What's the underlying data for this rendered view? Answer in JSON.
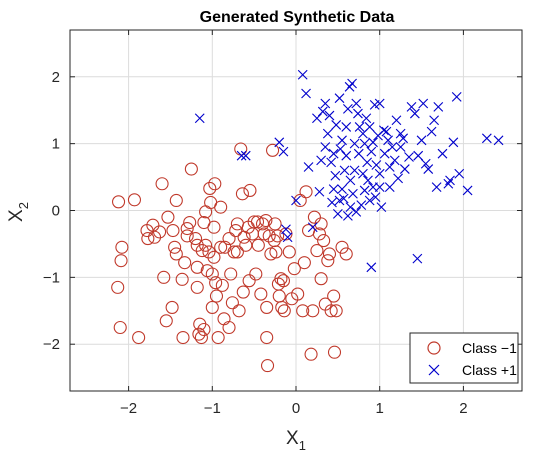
{
  "chart_data": {
    "type": "scatter",
    "title": "Generated Synthetic Data",
    "xlabel": {
      "main": "X",
      "sub": "1"
    },
    "ylabel": {
      "main": "X",
      "sub": "2"
    },
    "xlim": [
      -2.7,
      2.7
    ],
    "ylim": [
      -2.7,
      2.7
    ],
    "xticks": [
      -2,
      -1,
      0,
      1,
      2
    ],
    "yticks": [
      -2,
      -1,
      0,
      1,
      2
    ],
    "xtick_labels": [
      "−2",
      "−1",
      "0",
      "1",
      "2"
    ],
    "ytick_labels": [
      "−2",
      "−1",
      "0",
      "1",
      "2"
    ],
    "grid": true,
    "legend_position": "bottom-right",
    "series": [
      {
        "name": "Class −1",
        "marker": "circle",
        "color": "#c0392b",
        "points": [
          [
            -2.12,
            0.13
          ],
          [
            -1.93,
            0.16
          ],
          [
            -2.08,
            -0.55
          ],
          [
            -2.09,
            -0.75
          ],
          [
            -2.13,
            -1.15
          ],
          [
            -2.1,
            -1.75
          ],
          [
            -1.88,
            -1.9
          ],
          [
            -1.78,
            -0.3
          ],
          [
            -1.77,
            -0.42
          ],
          [
            -1.71,
            -0.22
          ],
          [
            -1.69,
            -0.4
          ],
          [
            -1.63,
            -0.32
          ],
          [
            -1.58,
            -1.0
          ],
          [
            -1.6,
            0.4
          ],
          [
            -1.53,
            -0.1
          ],
          [
            -1.55,
            -1.65
          ],
          [
            -1.48,
            -1.45
          ],
          [
            -1.47,
            -0.3
          ],
          [
            -1.45,
            -0.55
          ],
          [
            -1.43,
            -0.65
          ],
          [
            -1.43,
            0.15
          ],
          [
            -1.36,
            -1.03
          ],
          [
            -1.33,
            -0.78
          ],
          [
            -1.3,
            -0.27
          ],
          [
            -1.3,
            -0.38
          ],
          [
            -1.27,
            -0.18
          ],
          [
            -1.25,
            0.62
          ],
          [
            -1.2,
            -0.42
          ],
          [
            -1.18,
            -0.52
          ],
          [
            -1.18,
            -0.85
          ],
          [
            -1.18,
            -1.15
          ],
          [
            -1.15,
            -1.7
          ],
          [
            -1.16,
            -1.85
          ],
          [
            -1.13,
            -1.9
          ],
          [
            -1.1,
            -1.78
          ],
          [
            -1.12,
            -0.6
          ],
          [
            -1.1,
            -0.18
          ],
          [
            -1.08,
            -0.52
          ],
          [
            -1.06,
            -0.9
          ],
          [
            -1.04,
            -0.62
          ],
          [
            -1.03,
            0.33
          ],
          [
            -1.02,
            0.12
          ],
          [
            -1.0,
            -0.95
          ],
          [
            -1.0,
            -1.45
          ],
          [
            -0.98,
            -0.25
          ],
          [
            -0.98,
            -0.7
          ],
          [
            -0.97,
            0.4
          ],
          [
            -0.96,
            -1.08
          ],
          [
            -0.95,
            -1.28
          ],
          [
            -0.93,
            -1.9
          ],
          [
            -0.9,
            -0.55
          ],
          [
            -0.88,
            -1.12
          ],
          [
            -0.86,
            -1.62
          ],
          [
            -0.85,
            -0.55
          ],
          [
            -0.8,
            -0.42
          ],
          [
            -0.8,
            -1.75
          ],
          [
            -0.78,
            -0.95
          ],
          [
            -0.76,
            -1.38
          ],
          [
            -0.74,
            -0.62
          ],
          [
            -0.72,
            -0.3
          ],
          [
            -0.7,
            -0.2
          ],
          [
            -0.7,
            -0.62
          ],
          [
            -0.68,
            -1.5
          ],
          [
            -0.66,
            0.92
          ],
          [
            -0.64,
            0.25
          ],
          [
            -0.63,
            -1.22
          ],
          [
            -0.6,
            -0.52
          ],
          [
            -0.57,
            -0.25
          ],
          [
            -0.56,
            -1.05
          ],
          [
            -0.55,
            0.3
          ],
          [
            -0.52,
            -0.35
          ],
          [
            -0.5,
            -0.17
          ],
          [
            -0.48,
            -0.95
          ],
          [
            -0.46,
            -0.17
          ],
          [
            -0.45,
            -0.52
          ],
          [
            -0.42,
            -1.25
          ],
          [
            -0.4,
            -0.2
          ],
          [
            -0.38,
            -0.35
          ],
          [
            -0.36,
            -0.15
          ],
          [
            -0.35,
            -1.45
          ],
          [
            -0.35,
            -1.9
          ],
          [
            -0.34,
            -2.32
          ],
          [
            -0.32,
            -0.38
          ],
          [
            -0.3,
            -0.65
          ],
          [
            -0.28,
            0.9
          ],
          [
            -0.26,
            -0.45
          ],
          [
            -0.25,
            -0.2
          ],
          [
            -0.24,
            -0.62
          ],
          [
            -0.22,
            -0.38
          ],
          [
            -0.21,
            -1.1
          ],
          [
            -0.2,
            -1.28
          ],
          [
            -0.18,
            -1.02
          ],
          [
            -0.17,
            -1.45
          ],
          [
            -0.15,
            -1.05
          ],
          [
            -0.14,
            -1.5
          ],
          [
            -0.12,
            -0.35
          ],
          [
            -0.08,
            -0.62
          ],
          [
            -0.05,
            -1.32
          ],
          [
            -0.02,
            -0.87
          ],
          [
            0.02,
            -1.25
          ],
          [
            0.05,
            0.15
          ],
          [
            0.08,
            -1.5
          ],
          [
            0.1,
            -0.78
          ],
          [
            0.15,
            -0.3
          ],
          [
            0.18,
            -2.15
          ],
          [
            0.2,
            -1.5
          ],
          [
            0.22,
            -0.1
          ],
          [
            0.25,
            -0.6
          ],
          [
            0.28,
            -0.35
          ],
          [
            0.3,
            -0.2
          ],
          [
            0.3,
            -1.02
          ],
          [
            0.33,
            -0.45
          ],
          [
            0.35,
            -1.4
          ],
          [
            0.38,
            -0.75
          ],
          [
            0.4,
            -0.65
          ],
          [
            0.42,
            -1.5
          ],
          [
            0.45,
            -1.28
          ],
          [
            0.46,
            -2.12
          ],
          [
            0.48,
            -1.5
          ],
          [
            0.55,
            -0.55
          ],
          [
            0.6,
            -0.65
          ],
          [
            0.12,
            0.28
          ],
          [
            -0.9,
            0.05
          ],
          [
            -1.08,
            -0.02
          ],
          [
            -0.62,
            -0.4
          ],
          [
            -1.35,
            -1.9
          ]
        ]
      },
      {
        "name": "Class +1",
        "marker": "x",
        "color": "#0000cc",
        "points": [
          [
            -1.15,
            1.38
          ],
          [
            -0.65,
            0.82
          ],
          [
            -0.6,
            0.82
          ],
          [
            -0.2,
            1.02
          ],
          [
            -0.15,
            0.88
          ],
          [
            -0.12,
            -0.28
          ],
          [
            -0.1,
            -0.4
          ],
          [
            0.0,
            0.15
          ],
          [
            0.08,
            2.03
          ],
          [
            0.12,
            1.75
          ],
          [
            0.2,
            -0.25
          ],
          [
            0.25,
            1.38
          ],
          [
            0.28,
            0.28
          ],
          [
            0.3,
            0.75
          ],
          [
            0.32,
            1.48
          ],
          [
            0.35,
            1.6
          ],
          [
            0.38,
            1.15
          ],
          [
            0.4,
            1.42
          ],
          [
            0.42,
            0.72
          ],
          [
            0.43,
            0.12
          ],
          [
            0.45,
            0.85
          ],
          [
            0.47,
            0.52
          ],
          [
            0.48,
            1.28
          ],
          [
            0.5,
            -0.05
          ],
          [
            0.52,
            1.68
          ],
          [
            0.53,
            0.92
          ],
          [
            0.55,
            0.32
          ],
          [
            0.55,
            1.05
          ],
          [
            0.57,
            0.18
          ],
          [
            0.58,
            0.6
          ],
          [
            0.6,
            1.25
          ],
          [
            0.6,
            0.82
          ],
          [
            0.62,
            -0.08
          ],
          [
            0.62,
            1.52
          ],
          [
            0.64,
            1.85
          ],
          [
            0.65,
            0.45
          ],
          [
            0.67,
            1.9
          ],
          [
            0.68,
            0.25
          ],
          [
            0.7,
            1.0
          ],
          [
            0.7,
            0.6
          ],
          [
            0.72,
            -0.02
          ],
          [
            0.72,
            1.6
          ],
          [
            0.74,
            1.45
          ],
          [
            0.75,
            0.85
          ],
          [
            0.76,
            1.25
          ],
          [
            0.78,
            0.08
          ],
          [
            0.8,
            0.55
          ],
          [
            0.8,
            1.15
          ],
          [
            0.82,
            1.0
          ],
          [
            0.82,
            0.3
          ],
          [
            0.84,
            1.38
          ],
          [
            0.85,
            0.72
          ],
          [
            0.86,
            0.45
          ],
          [
            0.88,
            0.15
          ],
          [
            0.88,
            1.25
          ],
          [
            0.9,
            -0.85
          ],
          [
            0.9,
            0.88
          ],
          [
            0.92,
            1.02
          ],
          [
            0.92,
            0.35
          ],
          [
            0.94,
            1.58
          ],
          [
            0.95,
            0.2
          ],
          [
            0.96,
            0.68
          ],
          [
            0.98,
            1.12
          ],
          [
            1.0,
            0.55
          ],
          [
            1.0,
            1.6
          ],
          [
            1.02,
            0.05
          ],
          [
            1.05,
            1.2
          ],
          [
            1.06,
            0.85
          ],
          [
            1.08,
            1.18
          ],
          [
            1.1,
            1.05
          ],
          [
            1.12,
            0.35
          ],
          [
            1.12,
            0.65
          ],
          [
            1.15,
            0.95
          ],
          [
            1.18,
            0.75
          ],
          [
            1.2,
            1.35
          ],
          [
            1.22,
            0.48
          ],
          [
            1.25,
            0.95
          ],
          [
            1.28,
            1.08
          ],
          [
            1.3,
            0.62
          ],
          [
            1.35,
            0.8
          ],
          [
            1.38,
            1.55
          ],
          [
            1.42,
            1.45
          ],
          [
            1.45,
            -0.72
          ],
          [
            1.46,
            0.82
          ],
          [
            1.5,
            1.05
          ],
          [
            1.52,
            1.6
          ],
          [
            1.55,
            0.7
          ],
          [
            1.58,
            0.62
          ],
          [
            1.62,
            1.18
          ],
          [
            1.65,
            1.35
          ],
          [
            1.68,
            0.35
          ],
          [
            1.7,
            1.55
          ],
          [
            1.75,
            0.85
          ],
          [
            1.82,
            0.4
          ],
          [
            1.84,
            0.45
          ],
          [
            1.88,
            1.02
          ],
          [
            1.92,
            1.7
          ],
          [
            1.95,
            0.55
          ],
          [
            2.05,
            0.3
          ],
          [
            2.28,
            1.08
          ],
          [
            2.42,
            1.05
          ],
          [
            0.35,
            0.95
          ],
          [
            0.15,
            0.65
          ],
          [
            0.45,
            0.32
          ],
          [
            1.0,
            0.35
          ],
          [
            0.65,
            0.05
          ],
          [
            1.25,
            1.15
          ],
          [
            0.52,
            0.15
          ]
        ]
      }
    ]
  }
}
